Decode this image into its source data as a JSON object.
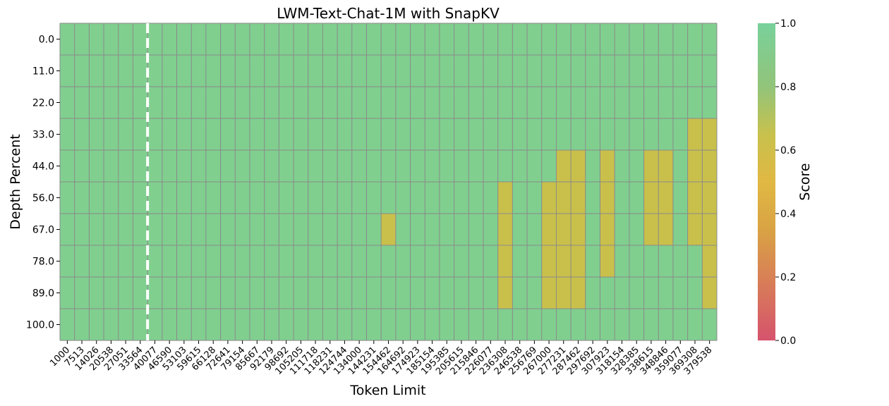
{
  "chart_data": {
    "type": "heatmap",
    "title": "LWM-Text-Chat-1M with SnapKV",
    "xlabel": "Token Limit",
    "ylabel": "Depth Percent",
    "x": [
      "1000",
      "7513",
      "14026",
      "20538",
      "27051",
      "33564",
      "40077",
      "46590",
      "53103",
      "59615",
      "66128",
      "72641",
      "79154",
      "85667",
      "92179",
      "98692",
      "105205",
      "111718",
      "118231",
      "124744",
      "134000",
      "144231",
      "154462",
      "164692",
      "174923",
      "185154",
      "195385",
      "205615",
      "215846",
      "226077",
      "236308",
      "246538",
      "256769",
      "267000",
      "277231",
      "287462",
      "297692",
      "307923",
      "318154",
      "328385",
      "338615",
      "348846",
      "359077",
      "369308",
      "379538"
    ],
    "y": [
      "0.0",
      "11.0",
      "22.0",
      "33.0",
      "44.0",
      "56.0",
      "67.0",
      "78.0",
      "89.0",
      "100.0"
    ],
    "values": [
      [
        1,
        1,
        1,
        1,
        1,
        1,
        1,
        1,
        1,
        1,
        1,
        1,
        1,
        1,
        1,
        1,
        1,
        1,
        1,
        1,
        1,
        1,
        1,
        1,
        1,
        1,
        1,
        1,
        1,
        1,
        1,
        1,
        1,
        1,
        1,
        1,
        1,
        1,
        1,
        1,
        1,
        1,
        1,
        1,
        1
      ],
      [
        1,
        1,
        1,
        1,
        1,
        1,
        1,
        1,
        1,
        1,
        1,
        1,
        1,
        1,
        1,
        1,
        1,
        1,
        1,
        1,
        1,
        1,
        1,
        1,
        1,
        1,
        1,
        1,
        1,
        1,
        1,
        1,
        1,
        1,
        1,
        1,
        1,
        1,
        1,
        1,
        1,
        1,
        1,
        1,
        1
      ],
      [
        1,
        1,
        1,
        1,
        1,
        1,
        1,
        1,
        1,
        1,
        1,
        1,
        1,
        1,
        1,
        1,
        1,
        1,
        1,
        1,
        1,
        1,
        1,
        1,
        1,
        1,
        1,
        1,
        1,
        1,
        1,
        1,
        1,
        1,
        1,
        1,
        1,
        1,
        1,
        1,
        1,
        1,
        1,
        1,
        1
      ],
      [
        1,
        1,
        1,
        1,
        1,
        1,
        1,
        1,
        1,
        1,
        1,
        1,
        1,
        1,
        1,
        1,
        1,
        1,
        1,
        1,
        1,
        1,
        1,
        1,
        1,
        1,
        1,
        1,
        1,
        1,
        1,
        1,
        1,
        1,
        1,
        1,
        1,
        1,
        1,
        1,
        1,
        1,
        1,
        0.6,
        0.6
      ],
      [
        1,
        1,
        1,
        1,
        1,
        1,
        1,
        1,
        1,
        1,
        1,
        1,
        1,
        1,
        1,
        1,
        1,
        1,
        1,
        1,
        1,
        1,
        1,
        1,
        1,
        1,
        1,
        1,
        1,
        1,
        1,
        1,
        1,
        1,
        0.6,
        0.6,
        1,
        0.6,
        1,
        1,
        0.6,
        0.6,
        1,
        0.6,
        0.6
      ],
      [
        1,
        1,
        1,
        1,
        1,
        1,
        1,
        1,
        1,
        1,
        1,
        1,
        1,
        1,
        1,
        1,
        1,
        1,
        1,
        1,
        1,
        1,
        1,
        1,
        1,
        1,
        1,
        1,
        1,
        1,
        0.6,
        1,
        1,
        0.6,
        0.6,
        0.6,
        1,
        0.6,
        1,
        1,
        0.6,
        0.6,
        1,
        0.6,
        0.6
      ],
      [
        1,
        1,
        1,
        1,
        1,
        1,
        1,
        1,
        1,
        1,
        1,
        1,
        1,
        1,
        1,
        1,
        1,
        1,
        1,
        1,
        1,
        1,
        0.6,
        1,
        1,
        1,
        1,
        1,
        1,
        1,
        0.6,
        1,
        1,
        0.6,
        0.6,
        0.6,
        1,
        0.6,
        1,
        1,
        0.6,
        0.6,
        1,
        0.6,
        0.6
      ],
      [
        1,
        1,
        1,
        1,
        1,
        1,
        1,
        1,
        1,
        1,
        1,
        1,
        1,
        1,
        1,
        1,
        1,
        1,
        1,
        1,
        1,
        1,
        1,
        1,
        1,
        1,
        1,
        1,
        1,
        1,
        0.6,
        1,
        1,
        0.6,
        0.6,
        0.6,
        1,
        0.6,
        1,
        1,
        1,
        1,
        1,
        1,
        0.6
      ],
      [
        1,
        1,
        1,
        1,
        1,
        1,
        1,
        1,
        1,
        1,
        1,
        1,
        1,
        1,
        1,
        1,
        1,
        1,
        1,
        1,
        1,
        1,
        1,
        1,
        1,
        1,
        1,
        1,
        1,
        1,
        0.6,
        1,
        1,
        0.6,
        0.6,
        0.6,
        1,
        1,
        1,
        1,
        1,
        1,
        1,
        1,
        0.6
      ],
      [
        1,
        1,
        1,
        1,
        1,
        1,
        1,
        1,
        1,
        1,
        1,
        1,
        1,
        1,
        1,
        1,
        1,
        1,
        1,
        1,
        1,
        1,
        1,
        1,
        1,
        1,
        1,
        1,
        1,
        1,
        1,
        1,
        1,
        1,
        1,
        1,
        1,
        1,
        1,
        1,
        1,
        1,
        1,
        1,
        1
      ]
    ],
    "colorbar": {
      "label": "Score",
      "range": [
        0,
        1
      ],
      "ticks": [
        "0.0",
        "0.2",
        "0.4",
        "0.6",
        "0.8",
        "1.0"
      ],
      "colors": [
        "#d6536d",
        "#d9a344",
        "#e0b843",
        "#c8c14d",
        "#92c47a",
        "#78d19b"
      ]
    },
    "cell_colors": {
      "1": "#80cf8f",
      "0.6": "#c9c04b"
    },
    "grid_color": "#8a8a8a",
    "marker_line": {
      "after_x": "33564",
      "style": "dashed",
      "color": "#ffffff"
    }
  }
}
